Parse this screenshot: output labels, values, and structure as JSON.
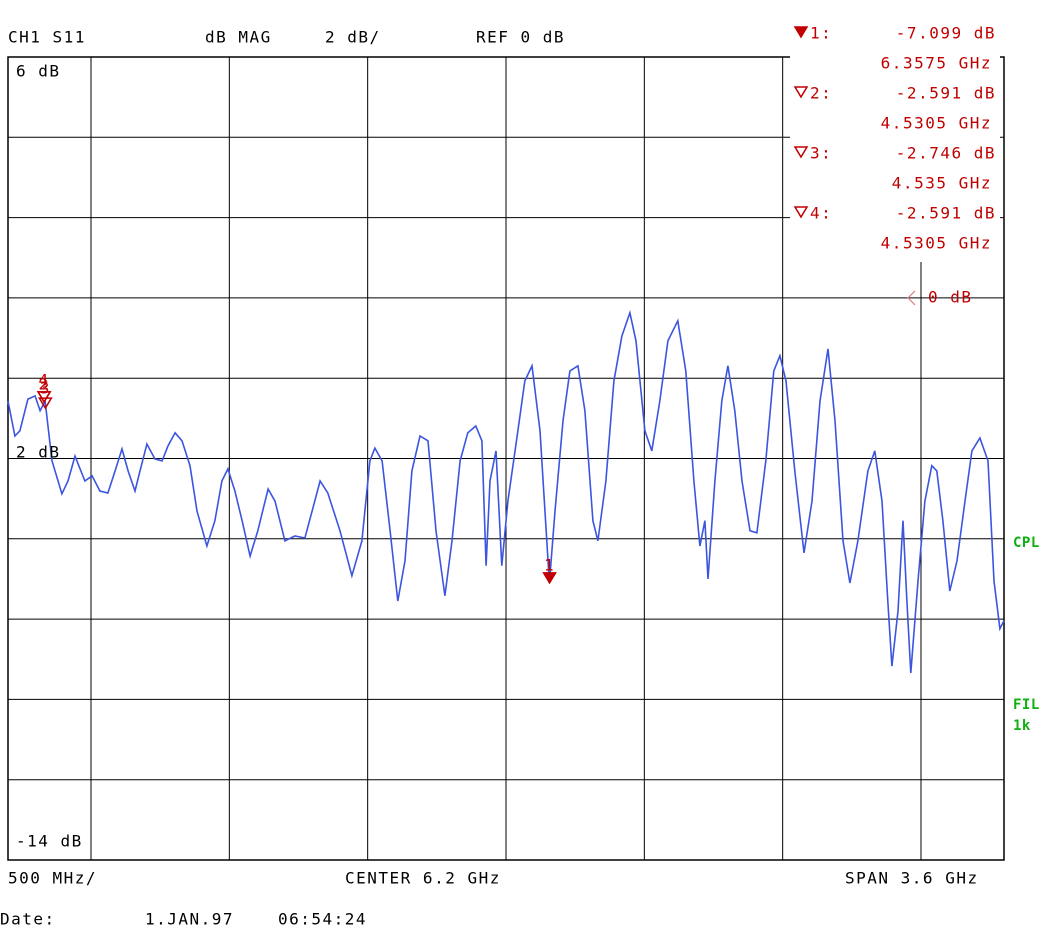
{
  "chart_data": {
    "type": "line",
    "header": {
      "channel": "CH1 S11",
      "format": "dB MAG",
      "scale": "2 dB/",
      "ref": "REF 0 dB"
    },
    "footer": {
      "div": "500 MHz/",
      "center": "CENTER 6.2 GHz",
      "span": "SPAN 3.6 GHz",
      "date_label": "Date:",
      "date": "1.JAN.97",
      "time": "06:54:24"
    },
    "side_labels": [
      "CPL",
      "FIL",
      "1k"
    ],
    "scale_labels": [
      "6 dB",
      "2 dB",
      "-14 dB"
    ],
    "reference": {
      "value": 0,
      "label": "0 dB"
    },
    "xlim": [
      4.4,
      8.0
    ],
    "ylim": [
      -14,
      6
    ],
    "xgrid": [
      4.7,
      5.2,
      5.7,
      6.2,
      6.7,
      7.2,
      7.7
    ],
    "ygrid": [
      4,
      2,
      0,
      -2,
      -4,
      -6,
      -8,
      -10,
      -12
    ],
    "x": [
      4.4,
      4.425,
      4.443,
      4.472,
      4.498,
      4.516,
      4.534,
      4.559,
      4.595,
      4.617,
      4.642,
      4.678,
      4.704,
      4.732,
      4.761,
      4.787,
      4.812,
      4.834,
      4.859,
      4.877,
      4.902,
      4.931,
      4.957,
      4.978,
      5.004,
      5.029,
      5.058,
      5.083,
      5.119,
      5.148,
      5.173,
      5.195,
      5.22,
      5.246,
      5.275,
      5.303,
      5.34,
      5.365,
      5.401,
      5.437,
      5.473,
      5.499,
      5.528,
      5.556,
      5.6,
      5.643,
      5.679,
      5.708,
      5.726,
      5.752,
      5.781,
      5.809,
      5.835,
      5.86,
      5.889,
      5.918,
      5.947,
      5.979,
      6.005,
      6.034,
      6.062,
      6.091,
      6.113,
      6.128,
      6.142,
      6.164,
      6.185,
      6.207,
      6.243,
      6.268,
      6.294,
      6.323,
      6.357,
      6.377,
      6.406,
      6.431,
      6.46,
      6.485,
      6.514,
      6.532,
      6.561,
      6.59,
      6.619,
      6.648,
      6.67,
      6.702,
      6.727,
      6.756,
      6.785,
      6.821,
      6.85,
      6.879,
      6.901,
      6.919,
      6.93,
      6.955,
      6.98,
      7.002,
      7.027,
      7.053,
      7.082,
      7.107,
      7.139,
      7.168,
      7.19,
      7.212,
      7.244,
      7.277,
      7.306,
      7.335,
      7.364,
      7.389,
      7.418,
      7.443,
      7.472,
      7.508,
      7.533,
      7.559,
      7.58,
      7.595,
      7.617,
      7.635,
      7.649,
      7.663,
      7.689,
      7.714,
      7.739,
      7.757,
      7.779,
      7.804,
      7.83,
      7.859,
      7.884,
      7.913,
      7.942,
      7.964,
      7.985,
      8.0
    ],
    "series": [
      {
        "name": "S11",
        "color": "#3b55e0",
        "values": [
          -2.57,
          -3.44,
          -3.31,
          -2.52,
          -2.44,
          -2.81,
          -2.57,
          -4.06,
          -4.88,
          -4.56,
          -3.94,
          -4.56,
          -4.43,
          -4.81,
          -4.86,
          -4.31,
          -3.76,
          -4.31,
          -4.81,
          -4.31,
          -3.64,
          -4.01,
          -4.06,
          -3.69,
          -3.36,
          -3.56,
          -4.18,
          -5.31,
          -6.18,
          -5.55,
          -4.56,
          -4.26,
          -4.81,
          -5.55,
          -6.43,
          -5.8,
          -4.76,
          -5.06,
          -6.05,
          -5.93,
          -5.98,
          -5.31,
          -4.56,
          -4.86,
          -5.8,
          -6.92,
          -6.05,
          -4.06,
          -3.74,
          -4.06,
          -5.8,
          -7.55,
          -6.55,
          -4.31,
          -3.44,
          -3.56,
          -5.8,
          -7.42,
          -6.05,
          -4.06,
          -3.36,
          -3.19,
          -3.56,
          -6.67,
          -4.56,
          -3.81,
          -6.67,
          -5.06,
          -3.31,
          -2.07,
          -1.69,
          -3.31,
          -7.1,
          -5.31,
          -3.06,
          -1.82,
          -1.69,
          -2.81,
          -5.55,
          -6.05,
          -4.56,
          -2.07,
          -0.95,
          -0.37,
          -1.07,
          -3.31,
          -3.81,
          -2.57,
          -1.07,
          -0.57,
          -1.82,
          -4.56,
          -6.18,
          -5.55,
          -7.0,
          -4.56,
          -2.57,
          -1.69,
          -2.81,
          -4.56,
          -5.8,
          -5.85,
          -4.06,
          -1.82,
          -1.44,
          -2.07,
          -4.31,
          -6.35,
          -5.06,
          -2.57,
          -1.27,
          -3.06,
          -6.05,
          -7.1,
          -6.05,
          -4.31,
          -3.81,
          -5.06,
          -7.55,
          -9.17,
          -7.8,
          -5.55,
          -7.55,
          -9.34,
          -7.05,
          -5.06,
          -4.18,
          -4.31,
          -5.55,
          -7.3,
          -6.55,
          -5.06,
          -3.81,
          -3.49,
          -4.06,
          -7.05,
          -8.24,
          -8.04
        ]
      }
    ],
    "markers": [
      {
        "id": "1",
        "label": "1:",
        "value": -7.099,
        "value_label": "-7.099 dB",
        "freq": 6.3575,
        "freq_label": "6.3575 GHz"
      },
      {
        "id": "2",
        "label": "2:",
        "value": -2.591,
        "value_label": "-2.591 dB",
        "freq": 4.5305,
        "freq_label": "4.5305 GHz"
      },
      {
        "id": "3",
        "label": "3:",
        "value": -2.746,
        "value_label": "-2.746 dB",
        "freq": 4.535,
        "freq_label": "4.535 GHz"
      },
      {
        "id": "4",
        "label": "4:",
        "value": -2.591,
        "value_label": "-2.591 dB",
        "freq": 4.5305,
        "freq_label": "4.5305 GHz"
      }
    ]
  }
}
